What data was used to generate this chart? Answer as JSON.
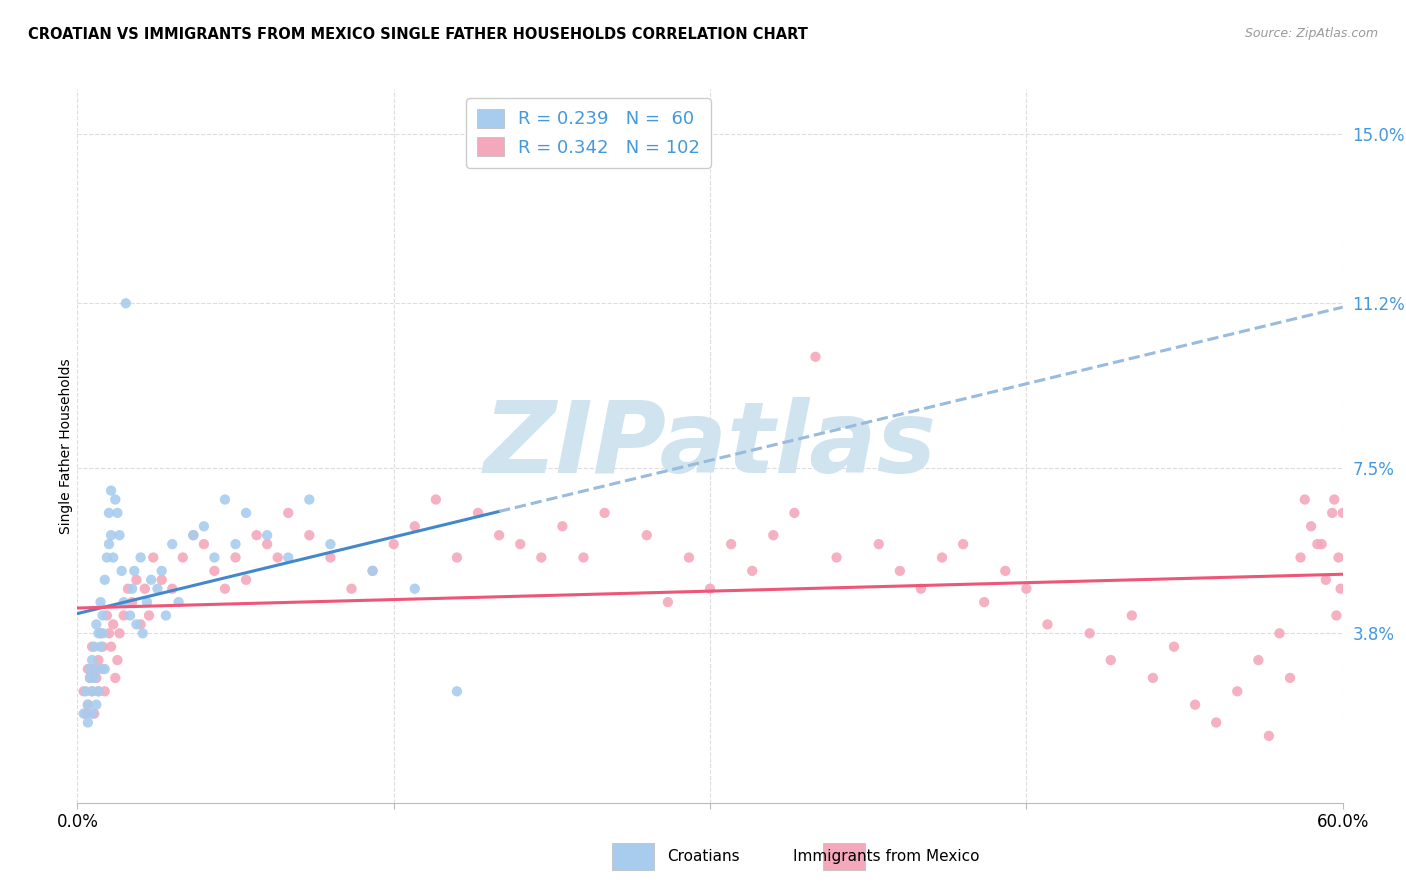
{
  "title": "CROATIAN VS IMMIGRANTS FROM MEXICO SINGLE FATHER HOUSEHOLDS CORRELATION CHART",
  "source": "Source: ZipAtlas.com",
  "ylabel": "Single Father Households",
  "ytick_labels": [
    "3.8%",
    "7.5%",
    "11.2%",
    "15.0%"
  ],
  "ytick_values": [
    0.038,
    0.075,
    0.112,
    0.15
  ],
  "xmin": 0.0,
  "xmax": 0.6,
  "ymin": 0.0,
  "ymax": 0.16,
  "croatian_R": 0.239,
  "croatian_N": 60,
  "mexico_R": 0.342,
  "mexico_N": 102,
  "color_croatian": "#A8CCEE",
  "color_mexico": "#F4A8BC",
  "color_blue_text": "#4499DD",
  "color_trend_croatian": "#4488CC",
  "color_trend_mexico": "#EE5577",
  "color_trend_cro_dashed": "#99BBDD",
  "watermark_text": "ZIPatlas",
  "watermark_color": "#D0E4F0",
  "grid_color": "#DDDDDD",
  "xtick_positions": [
    0.0,
    0.15,
    0.3,
    0.45,
    0.6
  ],
  "cro_x": [
    0.003,
    0.004,
    0.005,
    0.005,
    0.006,
    0.006,
    0.007,
    0.007,
    0.007,
    0.008,
    0.008,
    0.009,
    0.009,
    0.01,
    0.01,
    0.01,
    0.011,
    0.011,
    0.012,
    0.012,
    0.013,
    0.013,
    0.014,
    0.015,
    0.015,
    0.016,
    0.016,
    0.017,
    0.018,
    0.019,
    0.02,
    0.021,
    0.022,
    0.023,
    0.025,
    0.026,
    0.027,
    0.028,
    0.03,
    0.031,
    0.033,
    0.035,
    0.038,
    0.04,
    0.042,
    0.045,
    0.048,
    0.055,
    0.06,
    0.065,
    0.07,
    0.075,
    0.08,
    0.09,
    0.1,
    0.11,
    0.12,
    0.14,
    0.16,
    0.18
  ],
  "cro_y": [
    0.02,
    0.025,
    0.018,
    0.022,
    0.03,
    0.028,
    0.025,
    0.032,
    0.02,
    0.035,
    0.028,
    0.04,
    0.022,
    0.038,
    0.03,
    0.025,
    0.045,
    0.035,
    0.042,
    0.038,
    0.05,
    0.03,
    0.055,
    0.058,
    0.065,
    0.06,
    0.07,
    0.055,
    0.068,
    0.065,
    0.06,
    0.052,
    0.045,
    0.112,
    0.042,
    0.048,
    0.052,
    0.04,
    0.055,
    0.038,
    0.045,
    0.05,
    0.048,
    0.052,
    0.042,
    0.058,
    0.045,
    0.06,
    0.062,
    0.055,
    0.068,
    0.058,
    0.065,
    0.06,
    0.055,
    0.068,
    0.058,
    0.052,
    0.048,
    0.025
  ],
  "mex_x": [
    0.003,
    0.004,
    0.005,
    0.005,
    0.006,
    0.007,
    0.007,
    0.008,
    0.008,
    0.009,
    0.01,
    0.01,
    0.011,
    0.012,
    0.012,
    0.013,
    0.014,
    0.015,
    0.016,
    0.017,
    0.018,
    0.019,
    0.02,
    0.022,
    0.024,
    0.026,
    0.028,
    0.03,
    0.032,
    0.034,
    0.036,
    0.04,
    0.045,
    0.05,
    0.055,
    0.06,
    0.065,
    0.07,
    0.075,
    0.08,
    0.085,
    0.09,
    0.095,
    0.1,
    0.11,
    0.12,
    0.13,
    0.14,
    0.15,
    0.16,
    0.17,
    0.18,
    0.19,
    0.2,
    0.21,
    0.22,
    0.23,
    0.24,
    0.25,
    0.27,
    0.28,
    0.29,
    0.3,
    0.31,
    0.32,
    0.33,
    0.34,
    0.35,
    0.36,
    0.38,
    0.39,
    0.4,
    0.41,
    0.42,
    0.43,
    0.44,
    0.45,
    0.46,
    0.48,
    0.49,
    0.5,
    0.51,
    0.52,
    0.53,
    0.54,
    0.55,
    0.56,
    0.565,
    0.57,
    0.575,
    0.58,
    0.582,
    0.585,
    0.59,
    0.592,
    0.595,
    0.597,
    0.598,
    0.599,
    0.6,
    0.596,
    0.588
  ],
  "mex_y": [
    0.025,
    0.02,
    0.03,
    0.022,
    0.028,
    0.025,
    0.035,
    0.02,
    0.03,
    0.028,
    0.032,
    0.025,
    0.038,
    0.03,
    0.035,
    0.025,
    0.042,
    0.038,
    0.035,
    0.04,
    0.028,
    0.032,
    0.038,
    0.042,
    0.048,
    0.045,
    0.05,
    0.04,
    0.048,
    0.042,
    0.055,
    0.05,
    0.048,
    0.055,
    0.06,
    0.058,
    0.052,
    0.048,
    0.055,
    0.05,
    0.06,
    0.058,
    0.055,
    0.065,
    0.06,
    0.055,
    0.048,
    0.052,
    0.058,
    0.062,
    0.068,
    0.055,
    0.065,
    0.06,
    0.058,
    0.055,
    0.062,
    0.055,
    0.065,
    0.06,
    0.045,
    0.055,
    0.048,
    0.058,
    0.052,
    0.06,
    0.065,
    0.1,
    0.055,
    0.058,
    0.052,
    0.048,
    0.055,
    0.058,
    0.045,
    0.052,
    0.048,
    0.04,
    0.038,
    0.032,
    0.042,
    0.028,
    0.035,
    0.022,
    0.018,
    0.025,
    0.032,
    0.015,
    0.038,
    0.028,
    0.055,
    0.068,
    0.062,
    0.058,
    0.05,
    0.065,
    0.042,
    0.055,
    0.048,
    0.065,
    0.068,
    0.058
  ]
}
